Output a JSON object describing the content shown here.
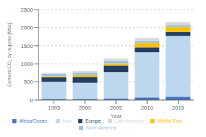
{
  "chart_data": {
    "type": "bar",
    "stacked": true,
    "categories": [
      "1995",
      "2000",
      "2005",
      "2010",
      "2015"
    ],
    "series": [
      {
        "name": "Africa/Ocean.",
        "color": "#4472C4",
        "values": [
          30,
          30,
          40,
          70,
          90
        ]
      },
      {
        "name": "Asia",
        "color": "#BDD7EE",
        "values": [
          470,
          450,
          730,
          1250,
          1680
        ]
      },
      {
        "name": "Europe",
        "color": "#243F60",
        "values": [
          130,
          160,
          185,
          135,
          110
        ]
      },
      {
        "name": "Middle East",
        "color": "#FFC000",
        "values": [
          30,
          45,
          60,
          120,
          130
        ]
      },
      {
        "name": "North America",
        "color": "#9DC3E6",
        "values": [
          65,
          75,
          75,
          60,
          55
        ]
      },
      {
        "name": "Latin America",
        "color": "#D9D9D9",
        "values": [
          30,
          40,
          55,
          80,
          90
        ]
      }
    ],
    "xlabel": "Year",
    "ylabel": "Cement CO₂ by regions [Mt/a]",
    "ylim": [
      0,
      2500
    ],
    "yticks": [
      0,
      500,
      1000,
      1500,
      2000,
      2500
    ],
    "grid": true,
    "legend": "bottom"
  }
}
